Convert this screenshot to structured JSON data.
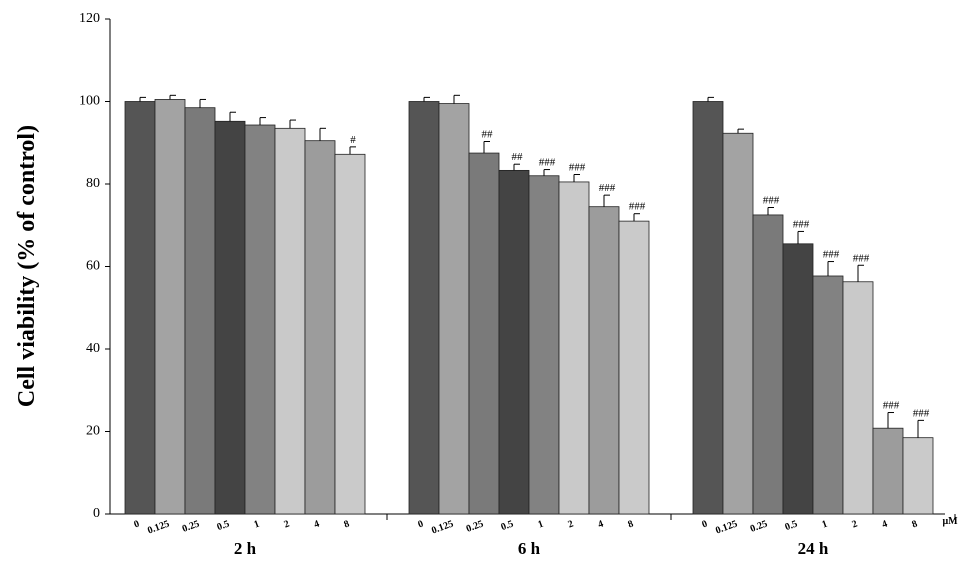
{
  "chart_data": {
    "type": "bar",
    "y_label": "Cell viability (% of control)",
    "categories": [
      "2 h",
      "6 h",
      "24 h"
    ],
    "unit_label": "μM",
    "ylim": [
      0,
      120
    ],
    "yticks": [
      0,
      20,
      40,
      60,
      80,
      100,
      120
    ],
    "series": [
      {
        "name": "0",
        "color": "#555555",
        "values": [
          100,
          100,
          100
        ],
        "errors": [
          1,
          1,
          1
        ],
        "annotations": [
          null,
          null,
          null
        ]
      },
      {
        "name": "0.125",
        "color": "#a3a3a3",
        "values": [
          100.5,
          99.5,
          92.3
        ],
        "errors": [
          1,
          2,
          1
        ],
        "annotations": [
          null,
          null,
          null
        ]
      },
      {
        "name": "0.25",
        "color": "#7a7a7a",
        "values": [
          98.5,
          87.5,
          72.5
        ],
        "errors": [
          2,
          2.8,
          1.8
        ],
        "annotations": [
          null,
          "##",
          "###"
        ]
      },
      {
        "name": "0.5",
        "color": "#444444",
        "values": [
          95.2,
          83.3,
          65.5
        ],
        "errors": [
          2.2,
          1.5,
          3
        ],
        "annotations": [
          null,
          "##",
          "###"
        ]
      },
      {
        "name": "1",
        "color": "#828282",
        "values": [
          94.3,
          82,
          57.7
        ],
        "errors": [
          1.8,
          1.5,
          3.5
        ],
        "annotations": [
          null,
          "###",
          "###"
        ]
      },
      {
        "name": "2",
        "color": "#c9c9c9",
        "values": [
          93.5,
          80.5,
          56.3
        ],
        "errors": [
          2,
          1.8,
          4
        ],
        "annotations": [
          null,
          "###",
          "###"
        ]
      },
      {
        "name": "4",
        "color": "#9c9c9c",
        "values": [
          90.5,
          74.5,
          20.8
        ],
        "errors": [
          3,
          2.8,
          3.8
        ],
        "annotations": [
          null,
          "###",
          "###"
        ]
      },
      {
        "name": "8",
        "color": "#cacaca",
        "values": [
          87.2,
          71,
          18.5
        ],
        "errors": [
          1.8,
          1.8,
          4.2
        ],
        "annotations": [
          "#",
          "###",
          "###"
        ]
      }
    ]
  }
}
